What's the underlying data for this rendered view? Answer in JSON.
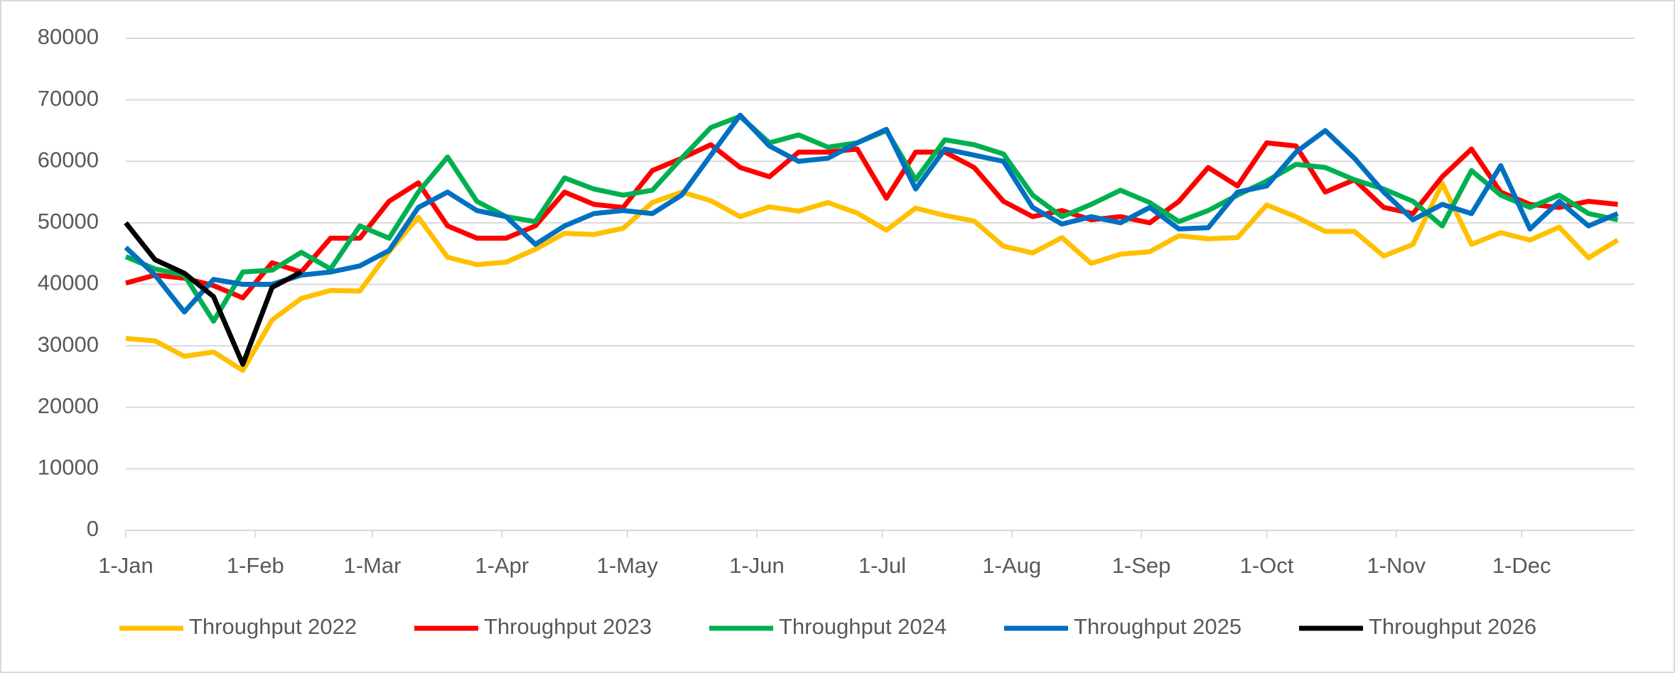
{
  "chart_data": {
    "type": "line",
    "x": [
      0,
      7,
      14,
      21,
      28,
      35,
      42,
      49,
      56,
      63,
      70,
      77,
      84,
      91,
      98,
      105,
      112,
      119,
      126,
      133,
      140,
      147,
      154,
      161,
      168,
      175,
      182,
      189,
      196,
      203,
      210,
      217,
      224,
      231,
      238,
      245,
      252,
      259,
      266,
      273,
      280,
      287,
      294,
      301,
      308,
      315,
      322,
      329,
      336,
      343,
      350,
      357
    ],
    "xlim": [
      0,
      361
    ],
    "xticks": [
      {
        "value": 0,
        "label": "1-Jan"
      },
      {
        "value": 31,
        "label": "1-Feb"
      },
      {
        "value": 59,
        "label": "1-Mar"
      },
      {
        "value": 90,
        "label": "1-Apr"
      },
      {
        "value": 120,
        "label": "1-May"
      },
      {
        "value": 151,
        "label": "1-Jun"
      },
      {
        "value": 181,
        "label": "1-Jul"
      },
      {
        "value": 212,
        "label": "1-Aug"
      },
      {
        "value": 243,
        "label": "1-Sep"
      },
      {
        "value": 273,
        "label": "1-Oct"
      },
      {
        "value": 304,
        "label": "1-Nov"
      },
      {
        "value": 334,
        "label": "1-Dec"
      }
    ],
    "ylim": [
      0,
      80000
    ],
    "yticks": [
      0,
      10000,
      20000,
      30000,
      40000,
      50000,
      60000,
      70000,
      80000
    ],
    "grid": true,
    "legend": "bottom",
    "series": [
      {
        "name": "Throughput 2022",
        "color": "#ffc000",
        "values": [
          31200,
          30800,
          28300,
          29000,
          26000,
          34200,
          37700,
          39000,
          38900,
          45300,
          50900,
          44400,
          43200,
          43600,
          45700,
          48300,
          48100,
          49100,
          53300,
          55000,
          53600,
          51000,
          52600,
          51900,
          53300,
          51600,
          48800,
          52400,
          51200,
          50300,
          46200,
          45100,
          47600,
          43400,
          44900,
          45300,
          47900,
          47400,
          47600,
          52900,
          51000,
          48600,
          48600,
          44600,
          46500,
          56400,
          46500,
          48400,
          47200,
          49300,
          44300,
          47200
        ]
      },
      {
        "name": "Throughput 2023",
        "color": "#ff0000",
        "values": [
          40200,
          41500,
          41000,
          39800,
          37800,
          43500,
          42000,
          47500,
          47500,
          53500,
          56500,
          49500,
          47500,
          47500,
          49500,
          55000,
          53000,
          52500,
          58500,
          60500,
          62700,
          59000,
          57500,
          61500,
          61500,
          62000,
          54000,
          61500,
          61500,
          59000,
          53500,
          51000,
          52000,
          50500,
          51000,
          50000,
          53500,
          59000,
          56000,
          63000,
          62500,
          55000,
          57000,
          52500,
          51500,
          57500,
          62000,
          55000,
          53000,
          52500,
          53500,
          53000
        ]
      },
      {
        "name": "Throughput 2024",
        "color": "#00b050",
        "values": [
          44500,
          42500,
          41500,
          34000,
          42000,
          42300,
          45200,
          42500,
          49500,
          47500,
          55000,
          60700,
          53500,
          51000,
          50200,
          57300,
          55500,
          54500,
          55300,
          60500,
          65500,
          67300,
          63000,
          64300,
          62300,
          63000,
          65000,
          57000,
          63500,
          62700,
          61200,
          54500,
          51000,
          53000,
          55300,
          53300,
          50200,
          52000,
          54500,
          56800,
          59500,
          59000,
          57000,
          55500,
          53500,
          49500,
          58500,
          54500,
          52500,
          54500,
          51500,
          50500
        ]
      },
      {
        "name": "Throughput 2025",
        "color": "#0070c0",
        "values": [
          46000,
          41500,
          35500,
          40800,
          40000,
          40000,
          41500,
          42000,
          43000,
          45500,
          52500,
          55000,
          52000,
          51000,
          46500,
          49500,
          51500,
          52000,
          51500,
          54500,
          61000,
          67500,
          62500,
          60000,
          60500,
          63000,
          65200,
          55500,
          62000,
          61000,
          60000,
          52500,
          49800,
          51000,
          50000,
          52500,
          49000,
          49200,
          55000,
          56000,
          61500,
          65000,
          60500,
          55000,
          50500,
          53000,
          51500,
          59300,
          49000,
          53500,
          49500,
          51500
        ]
      },
      {
        "name": "Throughput 2026",
        "color": "#000000",
        "values": [
          50000,
          44000,
          41800,
          38000,
          27000,
          39500,
          42000,
          null,
          null,
          null,
          null,
          null,
          null,
          null,
          null,
          null,
          null,
          null,
          null,
          null,
          null,
          null,
          null,
          null,
          null,
          null,
          null,
          null,
          null,
          null,
          null,
          null,
          null,
          null,
          null,
          null,
          null,
          null,
          null,
          null,
          null,
          null,
          null,
          null,
          null,
          null,
          null,
          null,
          null,
          null,
          null,
          null
        ]
      }
    ]
  }
}
